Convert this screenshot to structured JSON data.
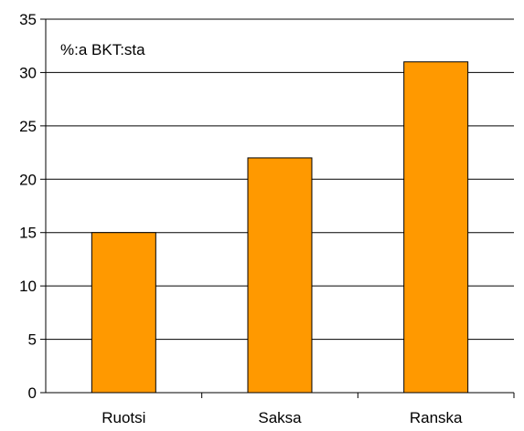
{
  "chart_data": {
    "type": "bar",
    "categories": [
      "Ruotsi",
      "Saksa",
      "Ranska"
    ],
    "values": [
      15,
      22,
      31
    ],
    "title": "",
    "xlabel": "",
    "ylabel": "",
    "annotation": "%:a BKT:sta",
    "ylim": [
      0,
      35
    ],
    "yticks": [
      "0",
      "5",
      "10",
      "15",
      "20",
      "25",
      "30",
      "35"
    ],
    "grid": true,
    "bar_color": "#FF9900",
    "bar_edge_color": "#000000"
  }
}
